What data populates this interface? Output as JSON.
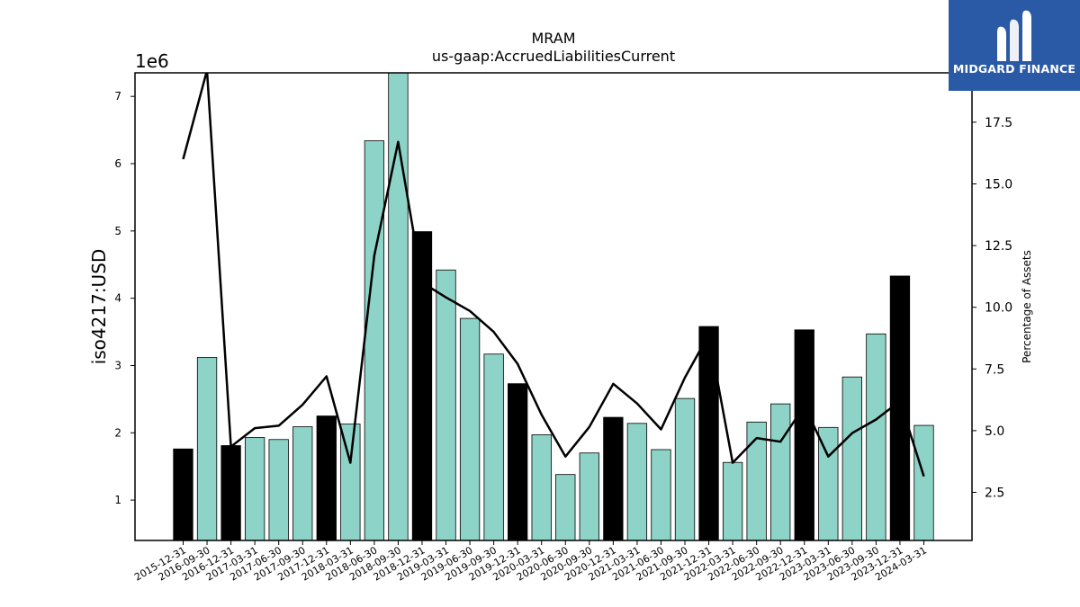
{
  "brand": {
    "name": "MIDGARD FINANCE",
    "icon": "midgard-m-icon",
    "color": "#2a5aa6"
  },
  "chart_data": {
    "type": "bar",
    "title": "MRAM",
    "subtitle": "us-gaap:AccruedLiabilitiesCurrent",
    "ylabel": "iso4217:USD",
    "y_multiplier_label": "1e6",
    "y2label": "Percentage of Assets",
    "ylim": [
      0.4,
      7.35
    ],
    "y2lim": [
      0.55,
      19.5
    ],
    "yticks": [
      "1",
      "2",
      "3",
      "4",
      "5",
      "6",
      "7"
    ],
    "y2ticks": [
      "2.5",
      "5.0",
      "7.5",
      "10.0",
      "12.5",
      "15.0",
      "17.5"
    ],
    "grid": false,
    "categories": [
      "2015-12-31",
      "2016-09-30",
      "2016-12-31",
      "2017-03-31",
      "2017-06-30",
      "2017-09-30",
      "2017-12-31",
      "2018-03-31",
      "2018-06-30",
      "2018-09-30",
      "2018-12-31",
      "2019-03-31",
      "2019-06-30",
      "2019-09-30",
      "2019-12-31",
      "2020-03-31",
      "2020-06-30",
      "2020-09-30",
      "2020-12-31",
      "2021-03-31",
      "2021-06-30",
      "2021-09-30",
      "2021-12-31",
      "2022-03-31",
      "2022-06-30",
      "2022-09-30",
      "2022-12-31",
      "2023-03-31",
      "2023-06-30",
      "2023-09-30",
      "2023-12-31",
      "2024-03-31"
    ],
    "series": [
      {
        "kind": "bar",
        "values": [
          1.76,
          3.12,
          1.81,
          1.93,
          1.9,
          2.09,
          2.25,
          2.13,
          6.34,
          7.35,
          4.99,
          4.42,
          3.7,
          3.17,
          2.73,
          1.97,
          1.38,
          1.7,
          2.23,
          2.14,
          1.75,
          2.51,
          3.58,
          1.56,
          2.16,
          2.43,
          3.53,
          2.08,
          2.83,
          3.47,
          4.33,
          2.11
        ],
        "highlight": [
          true,
          false,
          true,
          false,
          false,
          false,
          true,
          false,
          false,
          false,
          true,
          false,
          false,
          false,
          true,
          false,
          false,
          false,
          true,
          false,
          false,
          false,
          true,
          false,
          false,
          false,
          true,
          false,
          false,
          false,
          true,
          false
        ],
        "color": "#8dd3c7",
        "highlight_color": "#000000"
      },
      {
        "kind": "line",
        "axis": "right",
        "values": [
          16.0,
          19.6,
          4.35,
          5.1,
          5.2,
          6.05,
          7.2,
          3.7,
          12.1,
          16.7,
          11.0,
          10.4,
          9.85,
          9.0,
          7.7,
          5.65,
          3.95,
          5.15,
          6.9,
          6.1,
          5.05,
          7.15,
          8.9,
          3.7,
          4.7,
          4.55,
          6.0,
          3.95,
          4.9,
          5.45,
          6.2,
          3.15
        ],
        "color": "#000000"
      }
    ]
  }
}
